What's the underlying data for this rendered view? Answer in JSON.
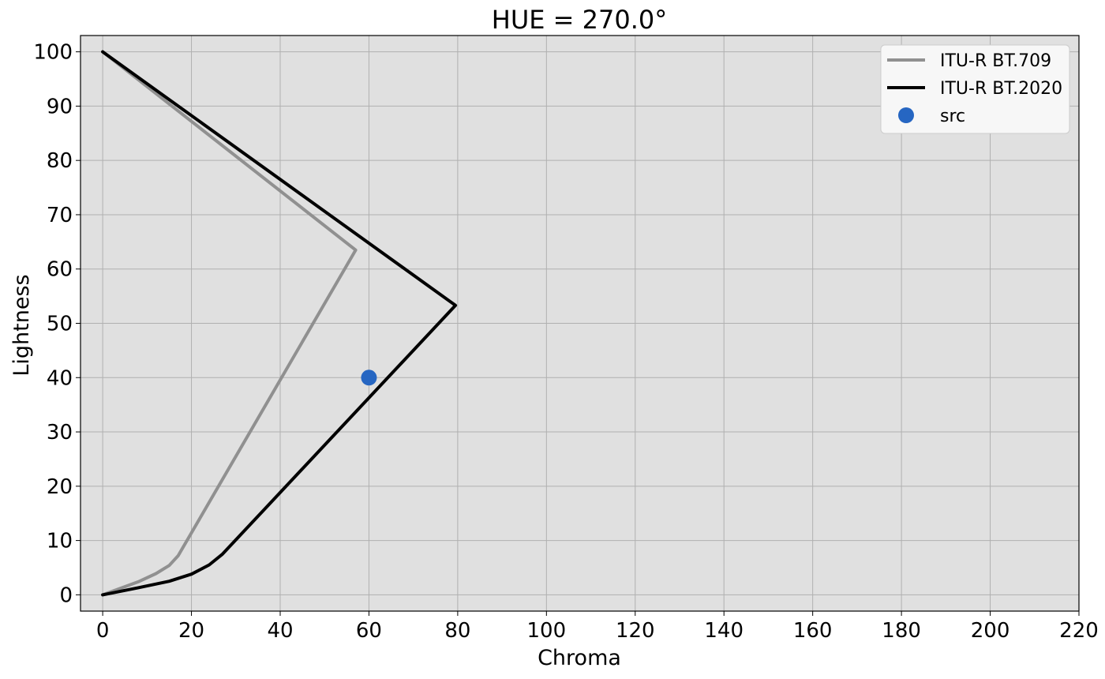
{
  "chart_data": {
    "type": "line",
    "title": "HUE = 270.0°",
    "xlabel": "Chroma",
    "ylabel": "Lightness",
    "xlim": [
      -5,
      220
    ],
    "ylim": [
      -3,
      103
    ],
    "xticks": [
      0,
      20,
      40,
      60,
      80,
      100,
      120,
      140,
      160,
      180,
      200,
      220
    ],
    "yticks": [
      0,
      10,
      20,
      30,
      40,
      50,
      60,
      70,
      80,
      90,
      100
    ],
    "grid": true,
    "legend_position": "top-right",
    "background": "#e0e0e0",
    "series": [
      {
        "name": "ITU-R BT.709",
        "kind": "line",
        "color": "#909090",
        "points": [
          [
            0,
            0
          ],
          [
            4,
            1.2
          ],
          [
            8,
            2.4
          ],
          [
            12,
            3.9
          ],
          [
            15,
            5.4
          ],
          [
            17,
            7.2
          ],
          [
            57,
            63.5
          ],
          [
            0,
            100
          ]
        ]
      },
      {
        "name": "ITU-R BT.2020",
        "kind": "line",
        "color": "#000000",
        "points": [
          [
            0,
            0
          ],
          [
            8,
            1.3
          ],
          [
            15,
            2.5
          ],
          [
            20,
            3.8
          ],
          [
            24,
            5.5
          ],
          [
            27,
            7.5
          ],
          [
            79.5,
            53.3
          ],
          [
            0,
            100
          ]
        ]
      },
      {
        "name": "src",
        "kind": "scatter",
        "color": "#2666c2",
        "points": [
          [
            60,
            40
          ]
        ]
      }
    ]
  }
}
